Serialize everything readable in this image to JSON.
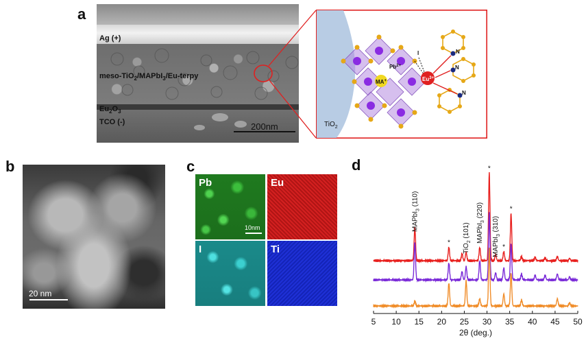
{
  "panels": {
    "a": "a",
    "b": "b",
    "c": "c",
    "d": "d"
  },
  "sem": {
    "ag_label": "Ag (+)",
    "active_label_pre": "meso-TiO",
    "active_label_sub1": "2",
    "active_label_mid": "/MAPbI",
    "active_label_sub2": "3",
    "active_label_post": "/Eu-terpy",
    "eu2o3_pre": "Eu",
    "eu2o3_sub1": "2",
    "eu2o3_mid": "O",
    "eu2o3_sub2": "3",
    "tco_label": "TCO (-)",
    "scale_label": "200nm"
  },
  "schematic": {
    "tio2_pre": "TiO",
    "tio2_sub": "2",
    "pb_label": "Pb",
    "pb_sup": "2+",
    "i_label": "I",
    "ma_label": "MA",
    "ma_sup": "+",
    "eu_label": "Eu",
    "eu_sup": "3+",
    "n_label": "N"
  },
  "tem": {
    "scale_label": "20  nm"
  },
  "eds": {
    "pb": "Pb",
    "eu": "Eu",
    "i": "I",
    "ti": "Ti",
    "scale_label": "10nm"
  },
  "colors": {
    "red_trace": "#e8211f",
    "purple_trace": "#7a2ad8",
    "orange_trace": "#f08c28",
    "pb_map": "#2ca22c",
    "eu_map": "#c81818",
    "i_map": "#2ac0c0",
    "ti_map": "#1a2ad0"
  },
  "chart_data": {
    "type": "line",
    "xlabel": "2θ (deg.)",
    "xlim": [
      5,
      50
    ],
    "x_ticks": [
      "5",
      "10",
      "15",
      "20",
      "25",
      "30",
      "35",
      "40",
      "45",
      "50"
    ],
    "series": [
      {
        "name": "",
        "color": "#e8211f",
        "offset": 2,
        "peaks": [
          [
            14.1,
            0.55
          ],
          [
            21.6,
            0.22
          ],
          [
            24.5,
            0.12
          ],
          [
            25.4,
            0.14
          ],
          [
            28.4,
            0.22
          ],
          [
            30.5,
            1.45
          ],
          [
            31.9,
            0.1
          ],
          [
            33.7,
            0.15
          ],
          [
            35.3,
            0.78
          ],
          [
            37.6,
            0.07
          ],
          [
            40.6,
            0.06
          ],
          [
            42.8,
            0.05
          ],
          [
            45.5,
            0.07
          ],
          [
            48.2,
            0.04
          ]
        ]
      },
      {
        "name": "",
        "color": "#7a2ad8",
        "offset": 1,
        "peaks": [
          [
            14.1,
            0.62
          ],
          [
            21.6,
            0.28
          ],
          [
            24.5,
            0.14
          ],
          [
            25.4,
            0.22
          ],
          [
            28.4,
            0.32
          ],
          [
            30.5,
            1.1
          ],
          [
            31.9,
            0.12
          ],
          [
            33.7,
            0.2
          ],
          [
            35.3,
            0.6
          ],
          [
            37.6,
            0.1
          ],
          [
            40.6,
            0.08
          ],
          [
            42.8,
            0.08
          ],
          [
            45.5,
            0.1
          ],
          [
            48.2,
            0.05
          ]
        ]
      },
      {
        "name": "",
        "color": "#f08c28",
        "offset": 0,
        "peaks": [
          [
            14.1,
            0.08
          ],
          [
            21.6,
            0.38
          ],
          [
            25.4,
            0.42
          ],
          [
            28.4,
            0.12
          ],
          [
            30.5,
            0.95
          ],
          [
            33.7,
            0.2
          ],
          [
            35.3,
            0.55
          ],
          [
            37.6,
            0.1
          ],
          [
            45.5,
            0.12
          ],
          [
            48.2,
            0.05
          ]
        ]
      }
    ],
    "annotations": [
      {
        "x": 14.1,
        "text": "MAPbI",
        "sub": "3",
        "post": " (110)"
      },
      {
        "x": 25.4,
        "text": "TiO",
        "sub": "2",
        "post": " (101)"
      },
      {
        "x": 28.4,
        "text": "MAPbI",
        "sub": "3",
        "post": " (220)"
      },
      {
        "x": 31.9,
        "text": "MAPbI",
        "sub": "3",
        "post": " (310)"
      }
    ],
    "asterisks": [
      21.6,
      30.5,
      33.7,
      35.3
    ],
    "asterisk_label": "*"
  }
}
